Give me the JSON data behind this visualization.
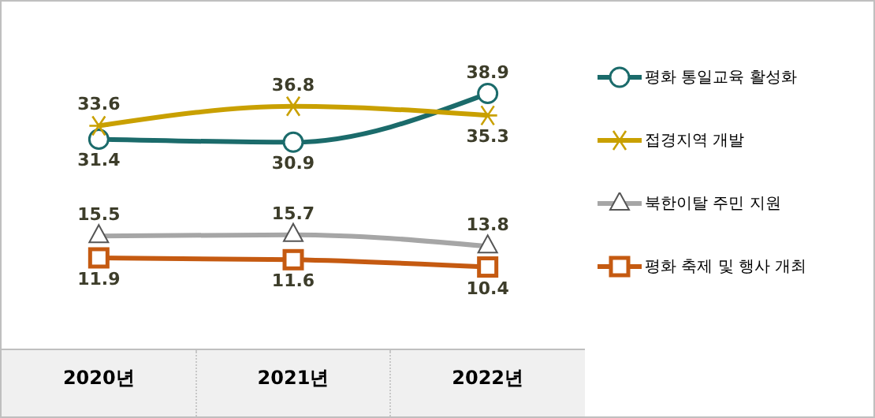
{
  "chart_data": {
    "type": "line",
    "categories": [
      "2020년",
      "2021년",
      "2022년"
    ],
    "series": [
      {
        "name": "평화 통일교육 활성화",
        "color": "#1b6b6b",
        "marker": "circle",
        "values": [
          31.4,
          30.9,
          38.9
        ]
      },
      {
        "name": "접경지역 개발",
        "color": "#c9a000",
        "marker": "cross",
        "values": [
          33.6,
          36.8,
          35.3
        ]
      },
      {
        "name": "북한이탈 주민 지원",
        "color": "#a6a6a6",
        "marker": "triangle",
        "values": [
          15.5,
          15.7,
          13.8
        ]
      },
      {
        "name": "평화 축제 및 행사 개최",
        "color": "#c55a11",
        "marker": "square",
        "values": [
          11.9,
          11.6,
          10.4
        ]
      }
    ],
    "ylim": [
      -3,
      54
    ],
    "data_labels": true,
    "legend": "right",
    "tick_labels": "x"
  }
}
